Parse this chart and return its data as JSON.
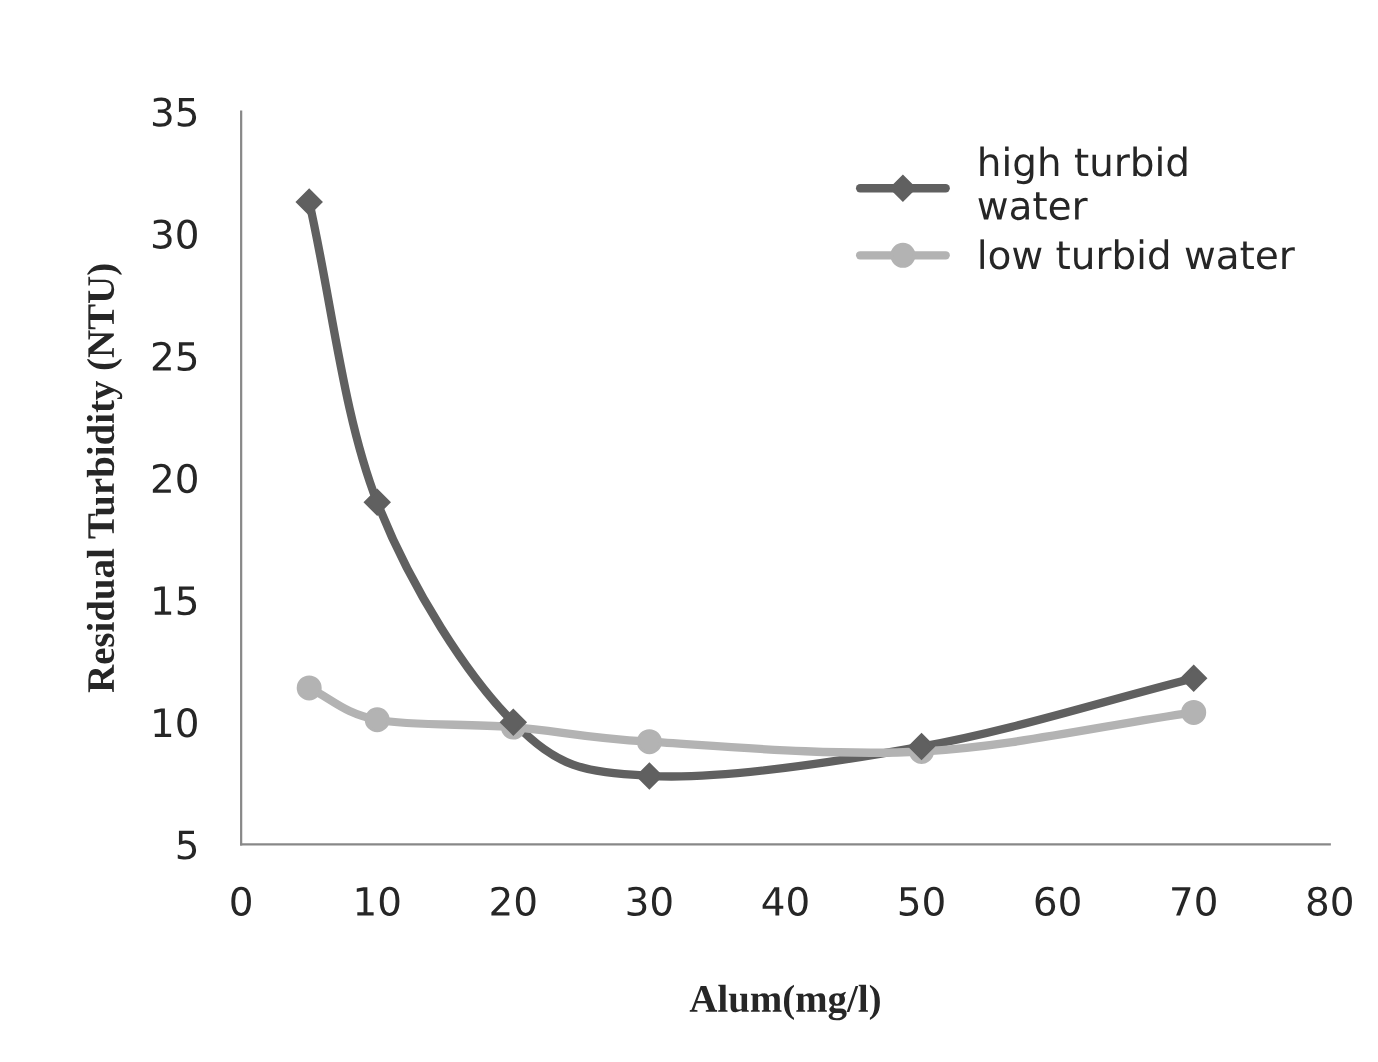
{
  "chart_data": {
    "type": "line",
    "xlabel": "Alum(mg/l)",
    "ylabel": "Residual Turbidity (NTU)",
    "x": [
      5,
      10,
      20,
      30,
      50,
      70
    ],
    "series": [
      {
        "name": "high turbid\nwater",
        "color": "#606060",
        "marker": "diamond",
        "values": [
          31.3,
          19.0,
          10.0,
          7.8,
          9.0,
          11.8
        ]
      },
      {
        "name": "low turbid water",
        "color": "#b3b3b3",
        "marker": "circle",
        "values": [
          11.4,
          10.1,
          9.8,
          9.2,
          8.8,
          10.4
        ]
      }
    ],
    "xlim": [
      0,
      80
    ],
    "xticks": [
      0,
      10,
      20,
      30,
      40,
      50,
      60,
      70,
      80
    ],
    "ylim": [
      5,
      35
    ],
    "yticks": [
      5,
      10,
      15,
      20,
      25,
      30,
      35
    ],
    "grid": false,
    "legend": "top right",
    "line_style": "solid"
  }
}
